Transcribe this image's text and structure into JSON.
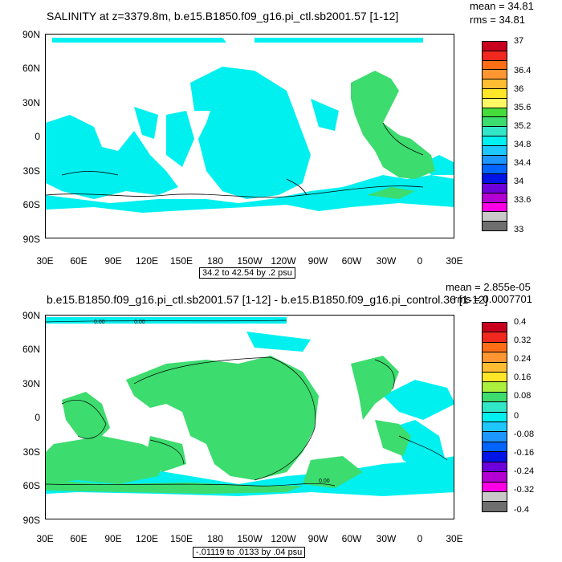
{
  "panels": [
    {
      "title": "SALINITY at z=3379.8m, b.e15.B1850.f09_g16.pi_ctl.sb2001.57 [1-12]",
      "mean": "mean = 34.81",
      "rms": "rms = 34.81",
      "contour_info": "34.2 to 42.54 by .2 psu",
      "y_ticks": [
        "90N",
        "60N",
        "30N",
        "0",
        "30S",
        "60S",
        "90S"
      ],
      "x_ticks": [
        "30E",
        "60E",
        "90E",
        "120E",
        "150E",
        "180",
        "150W",
        "120W",
        "90W",
        "60W",
        "30W",
        "0",
        "30E"
      ],
      "legend_labels": [
        "37",
        "36.4",
        "36",
        "35.6",
        "35.2",
        "34.8",
        "34.4",
        "34",
        "33.6",
        "33"
      ],
      "legend_colors": [
        "#c8001e",
        "#f0281e",
        "#ff6e14",
        "#ff9632",
        "#ffbe32",
        "#ffe628",
        "#fffa64",
        "#46dc3c",
        "#3cdc6e",
        "#32e6c8",
        "#00f0f0",
        "#1ec8ff",
        "#1e96ff",
        "#0064ff",
        "#0014e6",
        "#6e00dc",
        "#b400d2",
        "#ff00e6",
        "#c8c8c8",
        "#6e6e6e"
      ],
      "ocean_color": "#00f0f0",
      "high_color": "#3cdc6e"
    },
    {
      "title": "b.e15.B1850.f09_g16.pi_ctl.sb2001.57 [1-12] - b.e15.B1850.f09_g16.pi_control.36 [1-12]",
      "mean": "mean = 2.855e-05",
      "rms": "rms = 0.0007701",
      "contour_info": "-.01119 to .0133 by .04 psu",
      "contour_label": "0.00",
      "y_ticks": [
        "90N",
        "60N",
        "30N",
        "0",
        "30S",
        "60S",
        "90S"
      ],
      "x_ticks": [
        "30E",
        "60E",
        "90E",
        "120E",
        "150E",
        "180",
        "150W",
        "120W",
        "90W",
        "60W",
        "30W",
        "0",
        "30E"
      ],
      "legend_labels": [
        "0.4",
        "0.32",
        "0.24",
        "0.16",
        "0.08",
        "0",
        "-0.08",
        "-0.16",
        "-0.24",
        "-0.32",
        "-0.4"
      ],
      "legend_colors": [
        "#c8001e",
        "#f0281e",
        "#ff6e14",
        "#ff9632",
        "#ffbe32",
        "#ffe628",
        "#aaf03c",
        "#3cdc6e",
        "#32e6c8",
        "#00f0f0",
        "#1ec8ff",
        "#1e96ff",
        "#0064ff",
        "#0014e6",
        "#6e00dc",
        "#b400d2",
        "#ff00e6",
        "#c8c8c8",
        "#6e6e6e"
      ],
      "ocean_color": "#3cdc6e",
      "high_color": "#32e6c8"
    }
  ]
}
